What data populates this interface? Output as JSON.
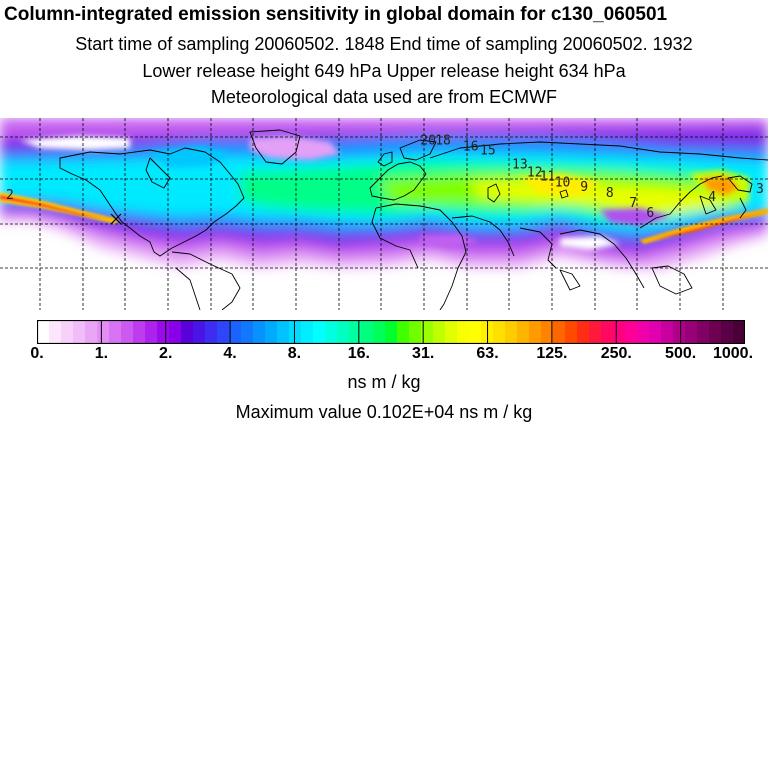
{
  "header": {
    "title": "Column-integrated emission sensitivity in global domain for c130_060501",
    "sampling_line": "Start time of sampling 20060502.  1848     End time of sampling 20060502.  1932",
    "release_line": "Lower release height  649 hPa        Upper release height  634 hPa",
    "met_line": "Meteorological data used are from ECMWF"
  },
  "colorbar": {
    "tick_labels": [
      "0.",
      "1.",
      "2.",
      "4.",
      "8.",
      "16.",
      "31.",
      "63.",
      "125.",
      "250.",
      "500.",
      "1000."
    ],
    "unit": "ns m / kg",
    "colors": [
      "#ffffff",
      "#fbe6fd",
      "#f6d2fb",
      "#f0bdf9",
      "#e9a6f7",
      "#e28ef5",
      "#d873f3",
      "#cc59f0",
      "#bd3cee",
      "#ad22ec",
      "#9b0aea",
      "#8a00e8",
      "#5a00d8",
      "#4a14e6",
      "#3c2df0",
      "#2e46f7",
      "#1c62ff",
      "#1178ff",
      "#0892ff",
      "#00aaff",
      "#00c3ff",
      "#00dcff",
      "#00eeff",
      "#00ffff",
      "#00ffe0",
      "#00ffc0",
      "#00ff9f",
      "#00ff7f",
      "#00ff5a",
      "#00ff2e",
      "#40ff00",
      "#70ff00",
      "#9aff00",
      "#bfff00",
      "#e0ff00",
      "#f8ff00",
      "#ffff00",
      "#fff000",
      "#ffe000",
      "#ffcc00",
      "#ffb400",
      "#ff9b00",
      "#ff8200",
      "#ff6600",
      "#ff4a00",
      "#ff2e12",
      "#ff1a3c",
      "#ff0860",
      "#ff0080",
      "#ff0096",
      "#f000a8",
      "#e000b0",
      "#c8009e",
      "#b0008a",
      "#980078",
      "#800064",
      "#6e0054",
      "#5a0046",
      "#480036"
    ]
  },
  "maximum_value_text": "Maximum value  0.102E+04 ns m / kg",
  "map": {
    "trajectory_labels": [
      {
        "text": "2",
        "lon": -178,
        "lat": 45
      },
      {
        "text": "20",
        "lon": 17,
        "lat": 72
      },
      {
        "text": "18",
        "lon": 24,
        "lat": 72
      },
      {
        "text": "16",
        "lon": 37,
        "lat": 69
      },
      {
        "text": "15",
        "lon": 45,
        "lat": 67
      },
      {
        "text": "13",
        "lon": 60,
        "lat": 60
      },
      {
        "text": "12",
        "lon": 67,
        "lat": 56
      },
      {
        "text": "11",
        "lon": 73,
        "lat": 54
      },
      {
        "text": "10",
        "lon": 80,
        "lat": 51
      },
      {
        "text": "9",
        "lon": 92,
        "lat": 49
      },
      {
        "text": "8",
        "lon": 104,
        "lat": 46
      },
      {
        "text": "7",
        "lon": 115,
        "lat": 41
      },
      {
        "text": "6",
        "lon": 123,
        "lat": 36
      },
      {
        "text": "4",
        "lon": 152,
        "lat": 44
      },
      {
        "text": "3",
        "lon": 176,
        "lat": 48
      }
    ],
    "release_point": {
      "lon": -124,
      "lat": 40
    }
  }
}
